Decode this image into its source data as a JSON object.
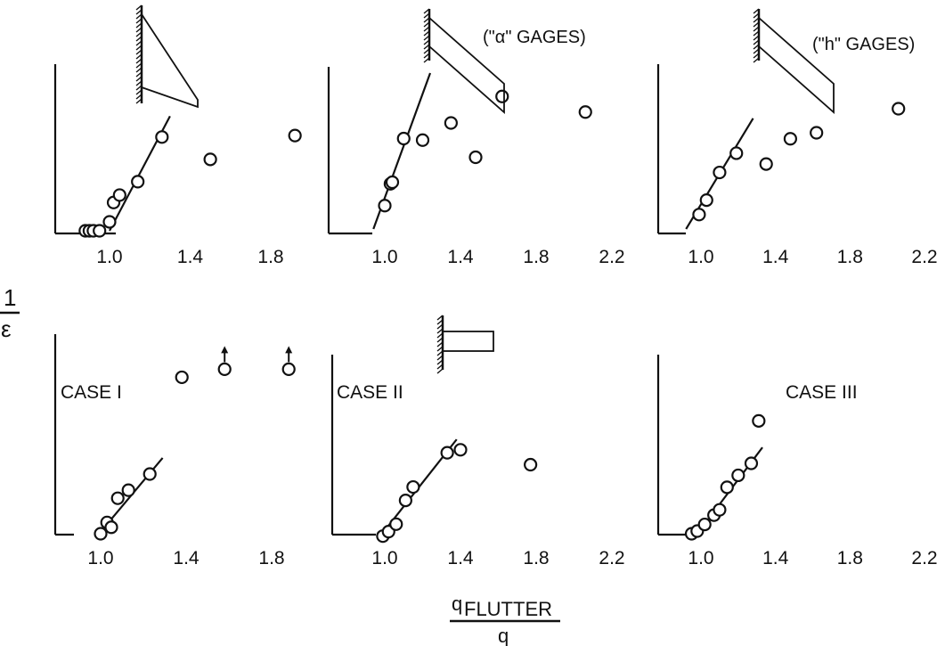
{
  "y_axis_label": {
    "numerator": "1",
    "denominator": "ε"
  },
  "x_axis_label": {
    "numerator": "q",
    "subscript": "FLUTTER",
    "denominator": "q"
  },
  "chart_data": [
    {
      "type": "scatter",
      "panel": "top-left",
      "case_label": "",
      "gage_label": "",
      "planform_icon": "swept-tapered-wing-icon",
      "xlim": [
        0.72,
        1.98
      ],
      "x_ticks": [
        "1.0",
        "1.4",
        "1.8"
      ],
      "x_tick_values": [
        1.0,
        1.4,
        1.8
      ],
      "points": [
        [
          0.88,
          0.0
        ],
        [
          0.9,
          0.0
        ],
        [
          0.92,
          0.0
        ],
        [
          0.95,
          0.0
        ],
        [
          1.0,
          0.06
        ],
        [
          1.02,
          0.19
        ],
        [
          1.05,
          0.24
        ],
        [
          1.14,
          0.33
        ],
        [
          1.26,
          0.63
        ],
        [
          1.5,
          0.48
        ],
        [
          1.92,
          0.64
        ]
      ],
      "fit_line": [
        [
          1.0,
          0.0
        ],
        [
          1.3,
          0.77
        ]
      ],
      "arrow_points": []
    },
    {
      "type": "scatter",
      "panel": "top-middle",
      "case_label": "",
      "gage_label": "(\"α\" GAGES)",
      "planform_icon": "swept-wing-icon",
      "xlim": [
        0.82,
        2.28
      ],
      "x_ticks": [
        "1.0",
        "1.4",
        "1.8",
        "2.2"
      ],
      "x_tick_values": [
        1.0,
        1.4,
        1.8,
        2.2
      ],
      "points": [
        [
          1.0,
          0.15
        ],
        [
          1.03,
          0.29
        ],
        [
          1.04,
          0.3
        ],
        [
          1.1,
          0.58
        ],
        [
          1.2,
          0.57
        ],
        [
          1.35,
          0.68
        ],
        [
          1.48,
          0.46
        ],
        [
          1.62,
          0.85
        ],
        [
          2.06,
          0.75
        ]
      ],
      "fit_line": [
        [
          0.94,
          0.0
        ],
        [
          1.24,
          1.0
        ]
      ],
      "arrow_points": []
    },
    {
      "type": "scatter",
      "panel": "top-right",
      "case_label": "",
      "gage_label": "(\"h\" GAGES)",
      "planform_icon": "swept-wing-icon",
      "xlim": [
        0.82,
        2.28
      ],
      "x_ticks": [
        "1.0",
        "1.4",
        "1.8",
        "2.2"
      ],
      "x_tick_values": [
        1.0,
        1.4,
        1.8,
        2.2
      ],
      "points": [
        [
          0.99,
          0.12
        ],
        [
          1.03,
          0.24
        ],
        [
          1.1,
          0.47
        ],
        [
          1.19,
          0.63
        ],
        [
          1.35,
          0.54
        ],
        [
          1.48,
          0.75
        ],
        [
          1.62,
          0.8
        ],
        [
          2.06,
          1.0
        ]
      ],
      "fit_line": [
        [
          0.92,
          0.0
        ],
        [
          1.28,
          0.92
        ]
      ],
      "arrow_points": []
    },
    {
      "type": "scatter",
      "panel": "bottom-left",
      "case_label": "CASE I",
      "gage_label": "",
      "planform_icon": "",
      "xlim": [
        0.72,
        1.98
      ],
      "x_ticks": [
        "1.0",
        "1.4",
        "1.8"
      ],
      "x_tick_values": [
        1.0,
        1.4,
        1.8
      ],
      "points": [
        [
          1.0,
          0.0
        ],
        [
          1.03,
          0.07
        ],
        [
          1.05,
          0.04
        ],
        [
          1.08,
          0.22
        ],
        [
          1.13,
          0.27
        ],
        [
          1.23,
          0.37
        ],
        [
          1.38,
          0.97
        ],
        [
          1.58,
          1.02
        ],
        [
          1.88,
          1.02
        ]
      ],
      "fit_line": [
        [
          0.98,
          -0.02
        ],
        [
          1.29,
          0.47
        ]
      ],
      "arrow_points": [
        1.58,
        1.88
      ]
    },
    {
      "type": "scatter",
      "panel": "bottom-middle",
      "case_label": "CASE II",
      "gage_label": "",
      "planform_icon": "rectangular-wing-icon",
      "xlim": [
        0.82,
        2.28
      ],
      "x_ticks": [
        "1.0",
        "1.4",
        "1.8",
        "2.2"
      ],
      "x_tick_values": [
        1.0,
        1.4,
        1.8,
        2.2
      ],
      "points": [
        [
          0.99,
          -0.01
        ],
        [
          1.02,
          0.02
        ],
        [
          1.06,
          0.07
        ],
        [
          1.11,
          0.23
        ],
        [
          1.15,
          0.32
        ],
        [
          1.33,
          0.55
        ],
        [
          1.4,
          0.57
        ],
        [
          1.77,
          0.47
        ]
      ],
      "fit_line": [
        [
          0.97,
          -0.02
        ],
        [
          1.38,
          0.64
        ]
      ],
      "arrow_points": []
    },
    {
      "type": "scatter",
      "panel": "bottom-right",
      "case_label": "CASE III",
      "gage_label": "",
      "planform_icon": "",
      "xlim": [
        0.82,
        2.28
      ],
      "x_ticks": [
        "1.0",
        "1.4",
        "1.8",
        "2.2"
      ],
      "x_tick_values": [
        1.0,
        1.4,
        1.8,
        2.2
      ],
      "points": [
        [
          0.95,
          0.0
        ],
        [
          0.98,
          0.02
        ],
        [
          1.02,
          0.07
        ],
        [
          1.07,
          0.14
        ],
        [
          1.1,
          0.18
        ],
        [
          1.14,
          0.35
        ],
        [
          1.2,
          0.44
        ],
        [
          1.27,
          0.53
        ],
        [
          1.31,
          0.85
        ]
      ],
      "fit_line": [
        [
          0.97,
          -0.02
        ],
        [
          1.33,
          0.65
        ]
      ],
      "arrow_points": []
    }
  ]
}
